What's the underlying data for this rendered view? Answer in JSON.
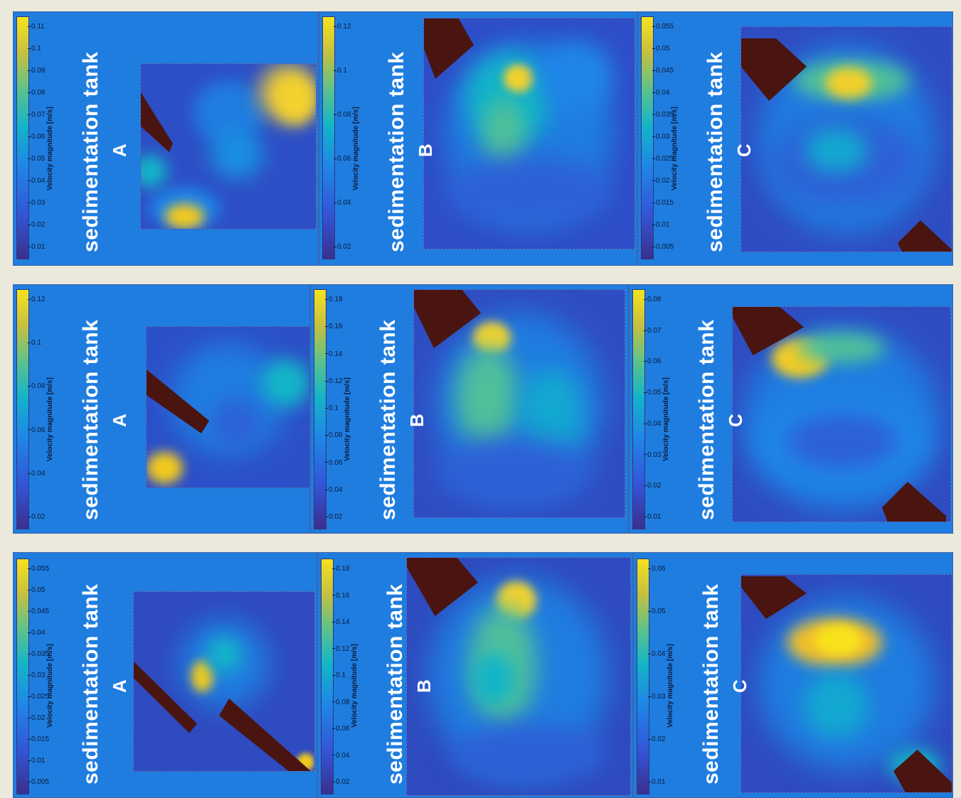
{
  "colorbar_label": "Velocity magnitude [m/s]",
  "tank_label": "sedimentation tank",
  "letters": [
    "A",
    "B",
    "C"
  ],
  "colormap": {
    "low": "#3b2f8f",
    "mid": "#13b4c8",
    "high": "#f7e21c",
    "background": "#1f7de0",
    "wall": "#4a1410"
  },
  "rows": [
    {
      "panels": [
        {
          "letter": "A",
          "ticks": [
            "0.11",
            "0.1",
            "0.09",
            "0.08",
            "0.07",
            "0.06",
            "0.05",
            "0.04",
            "0.03",
            "0.02",
            "0.01"
          ]
        },
        {
          "letter": "B",
          "ticks": [
            "0.12",
            "0.1",
            "0.08",
            "0.06",
            "0.04",
            "0.02"
          ]
        },
        {
          "letter": "C",
          "ticks": [
            "0.055",
            "0.05",
            "0.045",
            "0.04",
            "0.035",
            "0.03",
            "0.025",
            "0.02",
            "0.015",
            "0.01",
            "0.005"
          ]
        }
      ]
    },
    {
      "panels": [
        {
          "letter": "A",
          "ticks": [
            "0.12",
            "0.1",
            "0.08",
            "0.06",
            "0.04",
            "0.02"
          ]
        },
        {
          "letter": "B",
          "ticks": [
            "0.18",
            "0.16",
            "0.14",
            "0.12",
            "0.1",
            "0.08",
            "0.06",
            "0.04",
            "0.02"
          ]
        },
        {
          "letter": "C",
          "ticks": [
            "0.08",
            "0.07",
            "0.06",
            "0.05",
            "0.04",
            "0.03",
            "0.02",
            "0.01"
          ]
        }
      ]
    },
    {
      "panels": [
        {
          "letter": "A",
          "ticks": [
            "0.055",
            "0.05",
            "0.045",
            "0.04",
            "0.035",
            "0.03",
            "0.025",
            "0.02",
            "0.015",
            "0.01",
            "0.005"
          ]
        },
        {
          "letter": "B",
          "ticks": [
            "0.18",
            "0.16",
            "0.14",
            "0.12",
            "0.1",
            "0.08",
            "0.06",
            "0.04",
            "0.02"
          ]
        },
        {
          "letter": "C",
          "ticks": [
            "0.06",
            "0.05",
            "0.04",
            "0.03",
            "0.02",
            "0.01"
          ]
        }
      ]
    }
  ]
}
